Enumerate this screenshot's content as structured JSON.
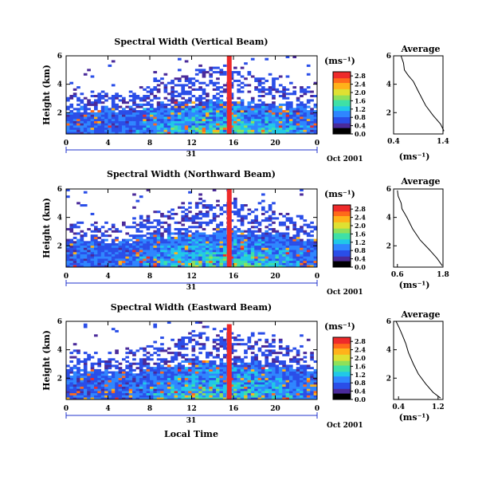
{
  "x_axis_label": "Local Time",
  "date_day": "31",
  "date_month": "Oct 2001",
  "colorbar_unit": "(ms⁻¹)",
  "colorbar_ticks": [
    "0.0",
    "0.4",
    "0.8",
    "1.2",
    "1.6",
    "2.0",
    "2.4",
    "2.8"
  ],
  "colors": {
    "colormap": [
      "#000000",
      "#4a2a9a",
      "#2a4ee8",
      "#2f86ff",
      "#21c8e8",
      "#3fe0a6",
      "#8ee05a",
      "#dfe032",
      "#ffb21a",
      "#ff6a1a",
      "#ee2a2a"
    ],
    "outline": "#000000",
    "profile_line": "#000000",
    "date_line": "#2233cc"
  },
  "chart_data": [
    {
      "type": "heatmap",
      "title": "Spectral Width (Vertical Beam)",
      "ylabel": "Height (km)",
      "xlabel": "",
      "xlim": [
        0,
        24
      ],
      "ylim": [
        0.5,
        6
      ],
      "x_ticks": [
        "0",
        "4",
        "8",
        "12",
        "16",
        "20",
        "0"
      ],
      "y_ticks": [
        "6",
        "4",
        "2"
      ],
      "colorbar": {
        "label": "(ms⁻¹)",
        "range": [
          0.0,
          3.0
        ],
        "ticks": [
          "0.0",
          "0.4",
          "0.8",
          "1.2",
          "1.6",
          "2.0",
          "2.4",
          "2.8"
        ]
      },
      "date_label": {
        "day": "31",
        "month": "Oct 2001"
      },
      "spike": {
        "x": 15.6,
        "top_km": 6.0,
        "value": 2.8
      },
      "layer_top_km": 2.2,
      "average_profile": {
        "title": "Average",
        "xlabel": "(ms⁻¹)",
        "xlim": [
          0.4,
          1.4
        ],
        "x_ticks": [
          "0.4",
          "1.4"
        ],
        "y_ticks": [
          "6",
          "4",
          "2"
        ],
        "ylim": [
          0.5,
          6
        ],
        "width": [
          0.55,
          0.6,
          0.62,
          0.7,
          0.8,
          0.9,
          1.05,
          1.2,
          1.35,
          1.42
        ],
        "height": [
          6.0,
          5.5,
          5.0,
          4.6,
          4.2,
          3.5,
          2.5,
          1.8,
          1.2,
          0.7
        ]
      }
    },
    {
      "type": "heatmap",
      "title": "Spectral Width (Northward Beam)",
      "ylabel": "Height (km)",
      "xlabel": "",
      "xlim": [
        0,
        24
      ],
      "ylim": [
        0.5,
        6
      ],
      "x_ticks": [
        "0",
        "4",
        "8",
        "12",
        "16",
        "20",
        "0"
      ],
      "y_ticks": [
        "6",
        "4",
        "2"
      ],
      "colorbar": {
        "label": "(ms⁻¹)",
        "range": [
          0.0,
          3.0
        ],
        "ticks": [
          "0.0",
          "0.4",
          "0.8",
          "1.2",
          "1.6",
          "2.0",
          "2.4",
          "2.8"
        ]
      },
      "date_label": {
        "day": "31",
        "month": "Oct 2001"
      },
      "spike": {
        "x": 15.6,
        "top_km": 6.0,
        "value": 2.8
      },
      "layer_top_km": 2.4,
      "average_profile": {
        "title": "Average",
        "xlabel": "(ms⁻¹)",
        "xlim": [
          0.5,
          1.8
        ],
        "x_ticks": [
          "0.6",
          "1.8"
        ],
        "y_ticks": [
          "6",
          "4",
          "2"
        ],
        "ylim": [
          0.5,
          6
        ],
        "width": [
          0.6,
          0.62,
          0.7,
          0.72,
          0.85,
          1.0,
          1.2,
          1.45,
          1.65,
          1.78
        ],
        "height": [
          5.9,
          5.5,
          5.0,
          4.6,
          4.0,
          3.2,
          2.4,
          1.7,
          1.1,
          0.6
        ]
      }
    },
    {
      "type": "heatmap",
      "title": "Spectral Width (Eastward Beam)",
      "ylabel": "Height (km)",
      "xlabel": "Local Time",
      "xlim": [
        0,
        24
      ],
      "ylim": [
        0.5,
        6
      ],
      "x_ticks": [
        "0",
        "4",
        "8",
        "12",
        "16",
        "20",
        "0"
      ],
      "y_ticks": [
        "6",
        "4",
        "2"
      ],
      "colorbar": {
        "label": "(ms⁻¹)",
        "range": [
          0.0,
          3.0
        ],
        "ticks": [
          "0.0",
          "0.4",
          "0.8",
          "1.2",
          "1.6",
          "2.0",
          "2.4",
          "2.8"
        ]
      },
      "date_label": {
        "day": "31",
        "month": "Oct 2001"
      },
      "spike": {
        "x": 15.6,
        "top_km": 5.8,
        "value": 2.8
      },
      "layer_top_km": 2.5,
      "average_profile": {
        "title": "Average",
        "xlabel": "(ms⁻¹)",
        "xlim": [
          0.3,
          1.3
        ],
        "x_ticks": [
          "0.4",
          "1.2"
        ],
        "y_ticks": [
          "6",
          "4",
          "2"
        ],
        "ylim": [
          0.5,
          6
        ],
        "width": [
          0.35,
          0.42,
          0.48,
          0.55,
          0.6,
          0.7,
          0.8,
          0.95,
          1.1,
          1.25
        ],
        "height": [
          6.0,
          5.5,
          5.0,
          4.4,
          3.8,
          3.0,
          2.3,
          1.6,
          1.0,
          0.6
        ]
      }
    }
  ]
}
